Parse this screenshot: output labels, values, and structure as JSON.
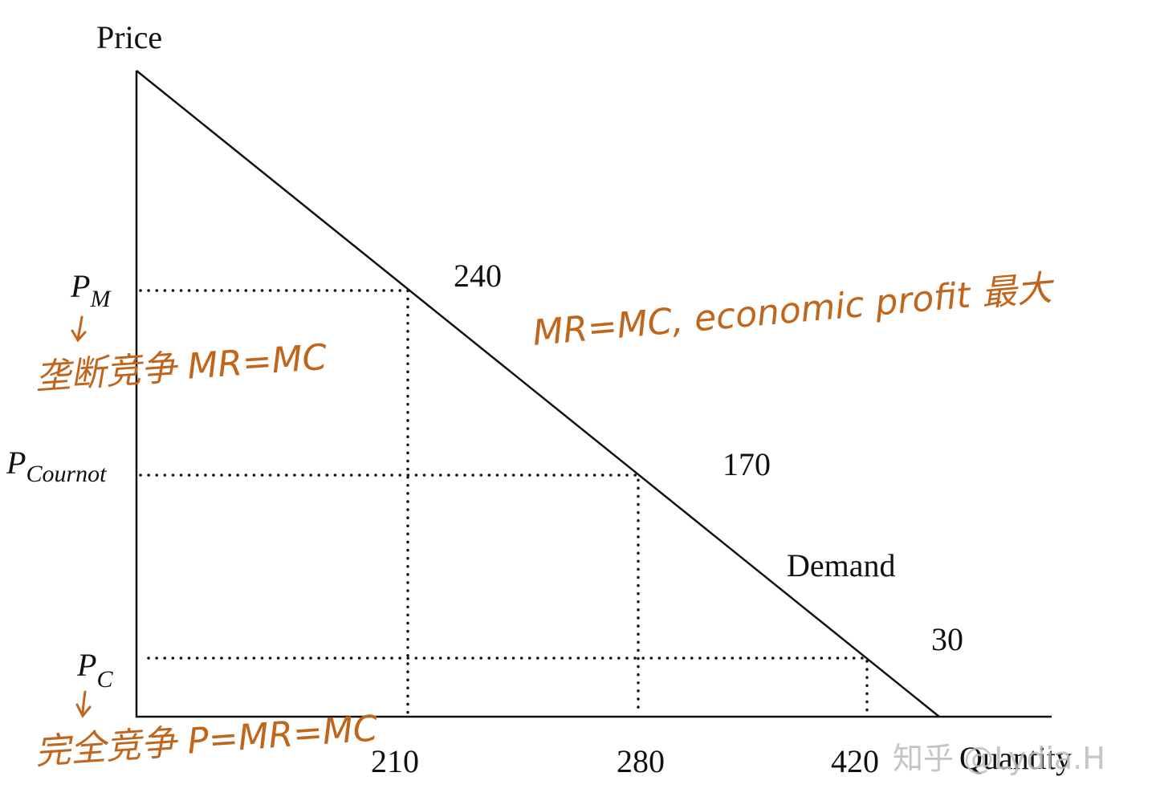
{
  "axes": {
    "y_label": "Price",
    "x_label": "Quantity"
  },
  "price_levels": [
    {
      "symbol": "P",
      "subscript": "M"
    },
    {
      "symbol": "P",
      "subscript": "Cournot"
    },
    {
      "symbol": "P",
      "subscript": "C"
    }
  ],
  "point_labels": [
    240,
    170,
    30
  ],
  "curve_label": "Demand",
  "quantity_labels": [
    210,
    280,
    420
  ],
  "annotations": [
    {
      "text": "垄断竞争 MR=MC"
    },
    {
      "text": "MR=MC, economic profit 最大"
    },
    {
      "text": "完全竞争 P=MR=MC"
    }
  ],
  "watermark": "知乎 @Lydia.H"
}
